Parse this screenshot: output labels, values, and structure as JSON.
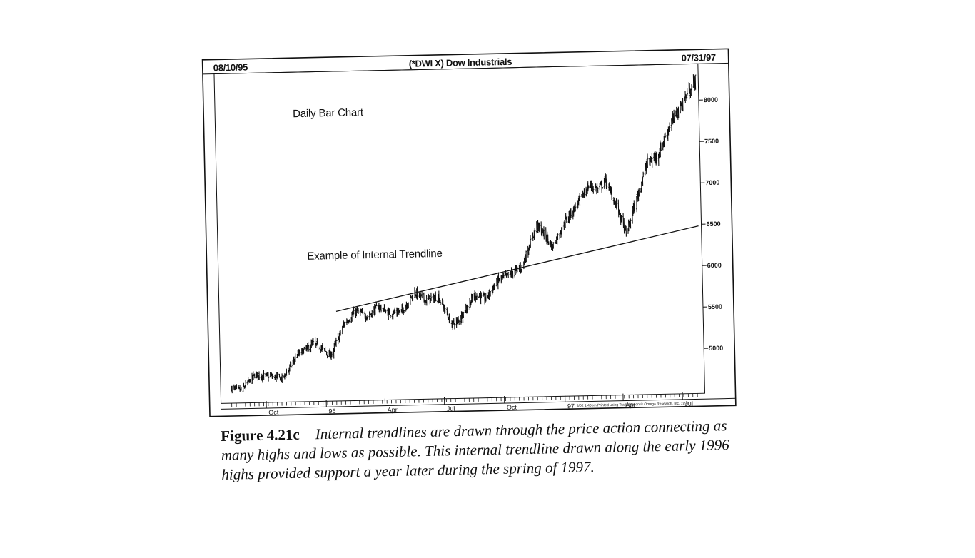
{
  "chart_data": {
    "type": "bar",
    "subtype": "daily OHLC bar chart",
    "title": "(*DWI X) Dow Industrials",
    "start_date": "08/10/95",
    "end_date": "07/31/97",
    "annotation_chart_kind": "Daily Bar Chart",
    "annotation_trendline": "Example of Internal Trendline",
    "ylim": [
      4500,
      8300
    ],
    "y_ticks": [
      5000,
      5500,
      6000,
      6500,
      7000,
      7500,
      8000
    ],
    "y_tick_labels": [
      "5000",
      "5500",
      "6000",
      "6500",
      "7000",
      "7500",
      "8000"
    ],
    "x_tick_labels": [
      "Oct",
      "96",
      "Apr",
      "Jul",
      "Oct",
      "97",
      "Apr",
      "Jul"
    ],
    "grid": false,
    "price_anchors": [
      {
        "date": "1995-08-10",
        "close": 4640
      },
      {
        "date": "1995-08-25",
        "close": 4610
      },
      {
        "date": "1995-09-15",
        "close": 4790
      },
      {
        "date": "1995-10-10",
        "close": 4770
      },
      {
        "date": "1995-10-28",
        "close": 4740
      },
      {
        "date": "1995-11-20",
        "close": 5020
      },
      {
        "date": "1995-12-15",
        "close": 5160
      },
      {
        "date": "1995-12-31",
        "close": 5080
      },
      {
        "date": "1996-01-10",
        "close": 5000
      },
      {
        "date": "1996-02-01",
        "close": 5390
      },
      {
        "date": "1996-02-20",
        "close": 5540
      },
      {
        "date": "1996-03-08",
        "close": 5470
      },
      {
        "date": "1996-03-25",
        "close": 5590
      },
      {
        "date": "1996-04-10",
        "close": 5500
      },
      {
        "date": "1996-04-30",
        "close": 5530
      },
      {
        "date": "1996-05-20",
        "close": 5750
      },
      {
        "date": "1996-06-05",
        "close": 5650
      },
      {
        "date": "1996-06-25",
        "close": 5690
      },
      {
        "date": "1996-07-15",
        "close": 5350
      },
      {
        "date": "1996-07-25",
        "close": 5400
      },
      {
        "date": "1996-08-20",
        "close": 5700
      },
      {
        "date": "1996-09-05",
        "close": 5650
      },
      {
        "date": "1996-09-25",
        "close": 5870
      },
      {
        "date": "1996-10-15",
        "close": 5950
      },
      {
        "date": "1996-11-01",
        "close": 6030
      },
      {
        "date": "1996-11-25",
        "close": 6530
      },
      {
        "date": "1996-12-10",
        "close": 6380
      },
      {
        "date": "1996-12-18",
        "close": 6260
      },
      {
        "date": "1997-01-10",
        "close": 6600
      },
      {
        "date": "1997-01-25",
        "close": 6750
      },
      {
        "date": "1997-02-15",
        "close": 7000
      },
      {
        "date": "1997-03-01",
        "close": 6950
      },
      {
        "date": "1997-03-12",
        "close": 7050
      },
      {
        "date": "1997-03-30",
        "close": 6700
      },
      {
        "date": "1997-04-11",
        "close": 6400
      },
      {
        "date": "1997-04-25",
        "close": 6750
      },
      {
        "date": "1997-05-15",
        "close": 7250
      },
      {
        "date": "1997-06-01",
        "close": 7350
      },
      {
        "date": "1997-06-20",
        "close": 7700
      },
      {
        "date": "1997-07-05",
        "close": 7900
      },
      {
        "date": "1997-07-20",
        "close": 8100
      },
      {
        "date": "1997-07-31",
        "close": 8250
      }
    ],
    "trendline": {
      "label": "Example of Internal Trendline",
      "start": {
        "date": "1996-01-20",
        "value": 5540
      },
      "end": {
        "date": "1997-07-31",
        "value": 6480
      }
    },
    "footnote": "3/02 1:40pm Printed using TradeStation © Omega Research, Inc. 1997"
  },
  "caption": {
    "label": "Figure 4.21c",
    "text": "Internal trendlines are drawn through the price action connecting as many highs and lows as possible. This internal trendline drawn along the early 1996 highs provided support a year later during the spring of 1997."
  }
}
